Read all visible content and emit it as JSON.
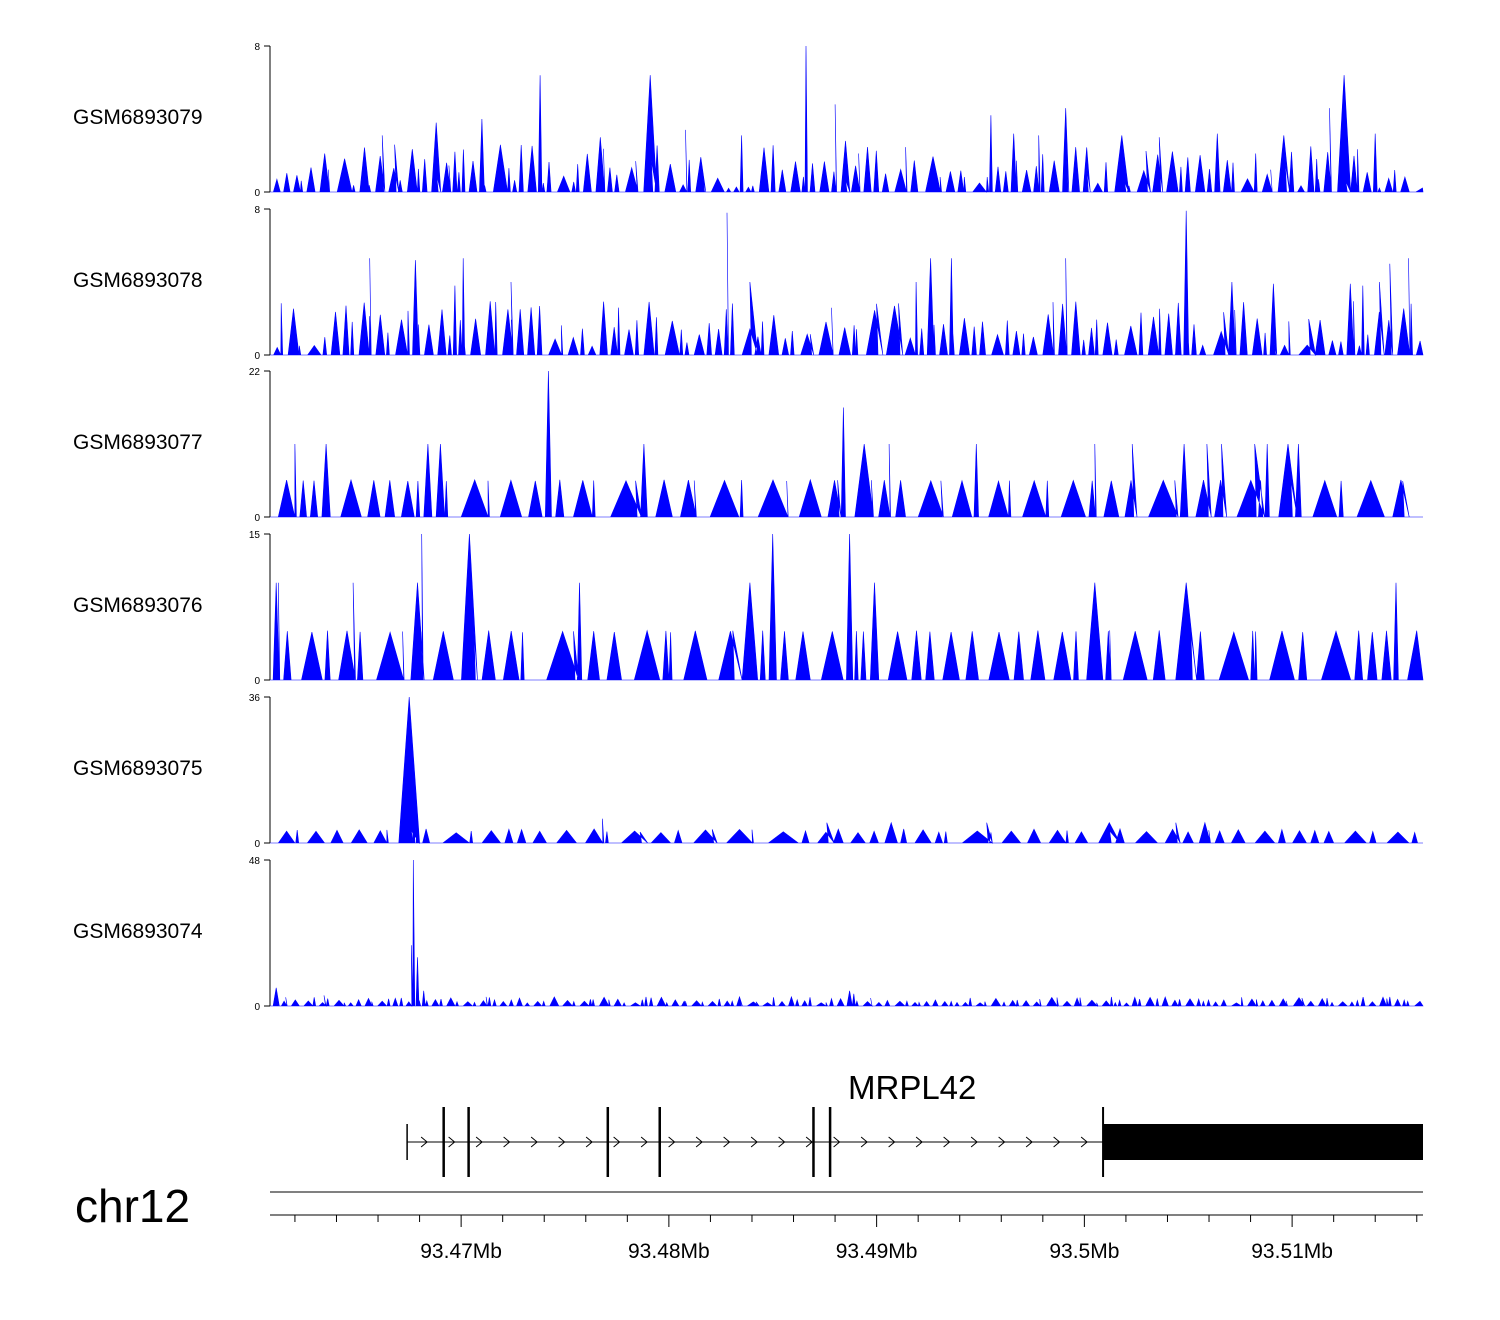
{
  "chart_data": {
    "type": "area",
    "chromosome": "chr12",
    "xlim": [
      93.4608,
      93.5163
    ],
    "colors": {
      "signal": "#0000ff",
      "gene": "#000000",
      "axis": "#000000"
    },
    "tracks": [
      {
        "name": "GSM6893079",
        "ylim": [
          0,
          8
        ],
        "ymax_label": "8",
        "ymin_label": "0",
        "peaks": [
          [
            93.4662,
            3.1
          ],
          [
            93.4668,
            2.6
          ],
          [
            93.4688,
            3.8
          ],
          [
            93.4693,
            1.6
          ],
          [
            93.4697,
            2.2
          ],
          [
            93.471,
            4.0
          ],
          [
            93.4738,
            6.4
          ],
          [
            93.4767,
            3.0
          ],
          [
            93.4791,
            6.4
          ],
          [
            93.4808,
            3.4
          ],
          [
            93.4835,
            3.1
          ],
          [
            93.4866,
            8.0
          ],
          [
            93.488,
            4.8
          ],
          [
            93.4885,
            2.8
          ],
          [
            93.4955,
            4.2
          ],
          [
            93.4966,
            3.2
          ],
          [
            93.4978,
            3.1
          ],
          [
            93.4991,
            4.6
          ],
          [
            93.5018,
            3.1
          ],
          [
            93.5036,
            3.0
          ],
          [
            93.5064,
            3.2
          ],
          [
            93.5096,
            3.1
          ],
          [
            93.5109,
            2.5
          ],
          [
            93.5118,
            4.6
          ],
          [
            93.5125,
            6.4
          ],
          [
            93.514,
            3.2
          ]
        ],
        "background": {
          "mean": 1.4,
          "spread": 1.2,
          "count": 120
        }
      },
      {
        "name": "GSM6893078",
        "ylim": [
          0,
          8
        ],
        "ymax_label": "8",
        "ymin_label": "0",
        "peaks": [
          [
            93.4656,
            5.3
          ],
          [
            93.4678,
            5.2
          ],
          [
            93.4697,
            3.8
          ],
          [
            93.4701,
            5.3
          ],
          [
            93.4724,
            4.0
          ],
          [
            93.4828,
            7.8
          ],
          [
            93.4839,
            4.0
          ],
          [
            93.4919,
            4.0
          ],
          [
            93.4926,
            5.3
          ],
          [
            93.4936,
            5.3
          ],
          [
            93.4991,
            5.3
          ],
          [
            93.5049,
            7.9
          ],
          [
            93.5071,
            4.0
          ],
          [
            93.5091,
            3.9
          ],
          [
            93.5128,
            3.9
          ],
          [
            93.5142,
            4.0
          ],
          [
            93.5147,
            5.0
          ],
          [
            93.5156,
            5.3
          ],
          [
            93.5134,
            3.8
          ]
        ],
        "background": {
          "mean": 1.7,
          "spread": 1.3,
          "count": 120
        }
      },
      {
        "name": "GSM6893077",
        "ylim": [
          0,
          22
        ],
        "ymax_label": "22",
        "ymin_label": "0",
        "peaks": [
          [
            93.462,
            11
          ],
          [
            93.4635,
            11
          ],
          [
            93.4684,
            11
          ],
          [
            93.469,
            11
          ],
          [
            93.4742,
            22
          ],
          [
            93.4788,
            11
          ],
          [
            93.4884,
            16.5
          ],
          [
            93.4894,
            11
          ],
          [
            93.4906,
            11
          ],
          [
            93.4948,
            11
          ],
          [
            93.5005,
            11
          ],
          [
            93.5023,
            11
          ],
          [
            93.5048,
            11
          ],
          [
            93.5059,
            11
          ],
          [
            93.5066,
            11
          ],
          [
            93.5082,
            11
          ],
          [
            93.5088,
            11
          ],
          [
            93.5098,
            11
          ],
          [
            93.5103,
            11
          ]
        ],
        "background": {
          "mean": 5.5,
          "spread": 0.1,
          "count": 55
        }
      },
      {
        "name": "GSM6893076",
        "ylim": [
          0,
          15
        ],
        "ymax_label": "15",
        "ymin_label": "0",
        "peaks": [
          [
            93.4611,
            10
          ],
          [
            93.4612,
            10
          ],
          [
            93.4648,
            10
          ],
          [
            93.4679,
            10
          ],
          [
            93.4681,
            15
          ],
          [
            93.4704,
            15
          ],
          [
            93.4757,
            10
          ],
          [
            93.4839,
            10
          ],
          [
            93.485,
            15
          ],
          [
            93.4887,
            15
          ],
          [
            93.4899,
            10
          ],
          [
            93.5005,
            10
          ],
          [
            93.5049,
            10
          ],
          [
            93.515,
            10
          ]
        ],
        "background": {
          "mean": 5,
          "spread": 0.1,
          "count": 55
        }
      },
      {
        "name": "GSM6893075",
        "ylim": [
          0,
          36
        ],
        "ymax_label": "36",
        "ymin_label": "0",
        "peaks": [
          [
            93.4675,
            36
          ],
          [
            93.4677,
            19
          ],
          [
            93.4679,
            6
          ],
          [
            93.4768,
            6
          ],
          [
            93.4876,
            5
          ],
          [
            93.4907,
            5
          ],
          [
            93.4953,
            5
          ],
          [
            93.5012,
            5
          ],
          [
            93.5044,
            5
          ],
          [
            93.5058,
            5
          ]
        ],
        "background": {
          "mean": 3,
          "spread": 0.5,
          "count": 60
        }
      },
      {
        "name": "GSM6893074",
        "ylim": [
          0,
          48
        ],
        "ymax_label": "48",
        "ymin_label": "0",
        "peaks": [
          [
            93.4677,
            48
          ],
          [
            93.4679,
            16
          ],
          [
            93.4682,
            5
          ],
          [
            93.4676,
            20
          ],
          [
            93.4611,
            6
          ],
          [
            93.4634,
            3.5
          ],
          [
            93.4712,
            3
          ],
          [
            93.4789,
            3
          ],
          [
            93.4834,
            3
          ],
          [
            93.4859,
            3
          ],
          [
            93.4887,
            5
          ],
          [
            93.4889,
            4
          ],
          [
            93.5013,
            3
          ],
          [
            93.5147,
            3
          ]
        ],
        "background": {
          "mean": 2,
          "spread": 1.0,
          "count": 150
        }
      }
    ],
    "gene": {
      "name": "MRPL42",
      "strand": "+",
      "tx_start": 93.4674,
      "tx_end": 93.5163,
      "exons": [
        [
          93.4691,
          93.4692
        ],
        [
          93.4703,
          93.4704
        ],
        [
          93.477,
          93.4771
        ],
        [
          93.4795,
          93.4796
        ],
        [
          93.4869,
          93.4874
        ],
        [
          93.4877,
          93.4879
        ],
        [
          93.5009,
          93.5163
        ]
      ]
    },
    "axis": {
      "ticks": [
        93.47,
        93.48,
        93.49,
        93.5,
        93.51
      ],
      "tick_labels": [
        "93.47Mb",
        "93.48Mb",
        "93.49Mb",
        "93.5Mb",
        "93.51Mb"
      ],
      "minor_step": 0.002
    }
  }
}
